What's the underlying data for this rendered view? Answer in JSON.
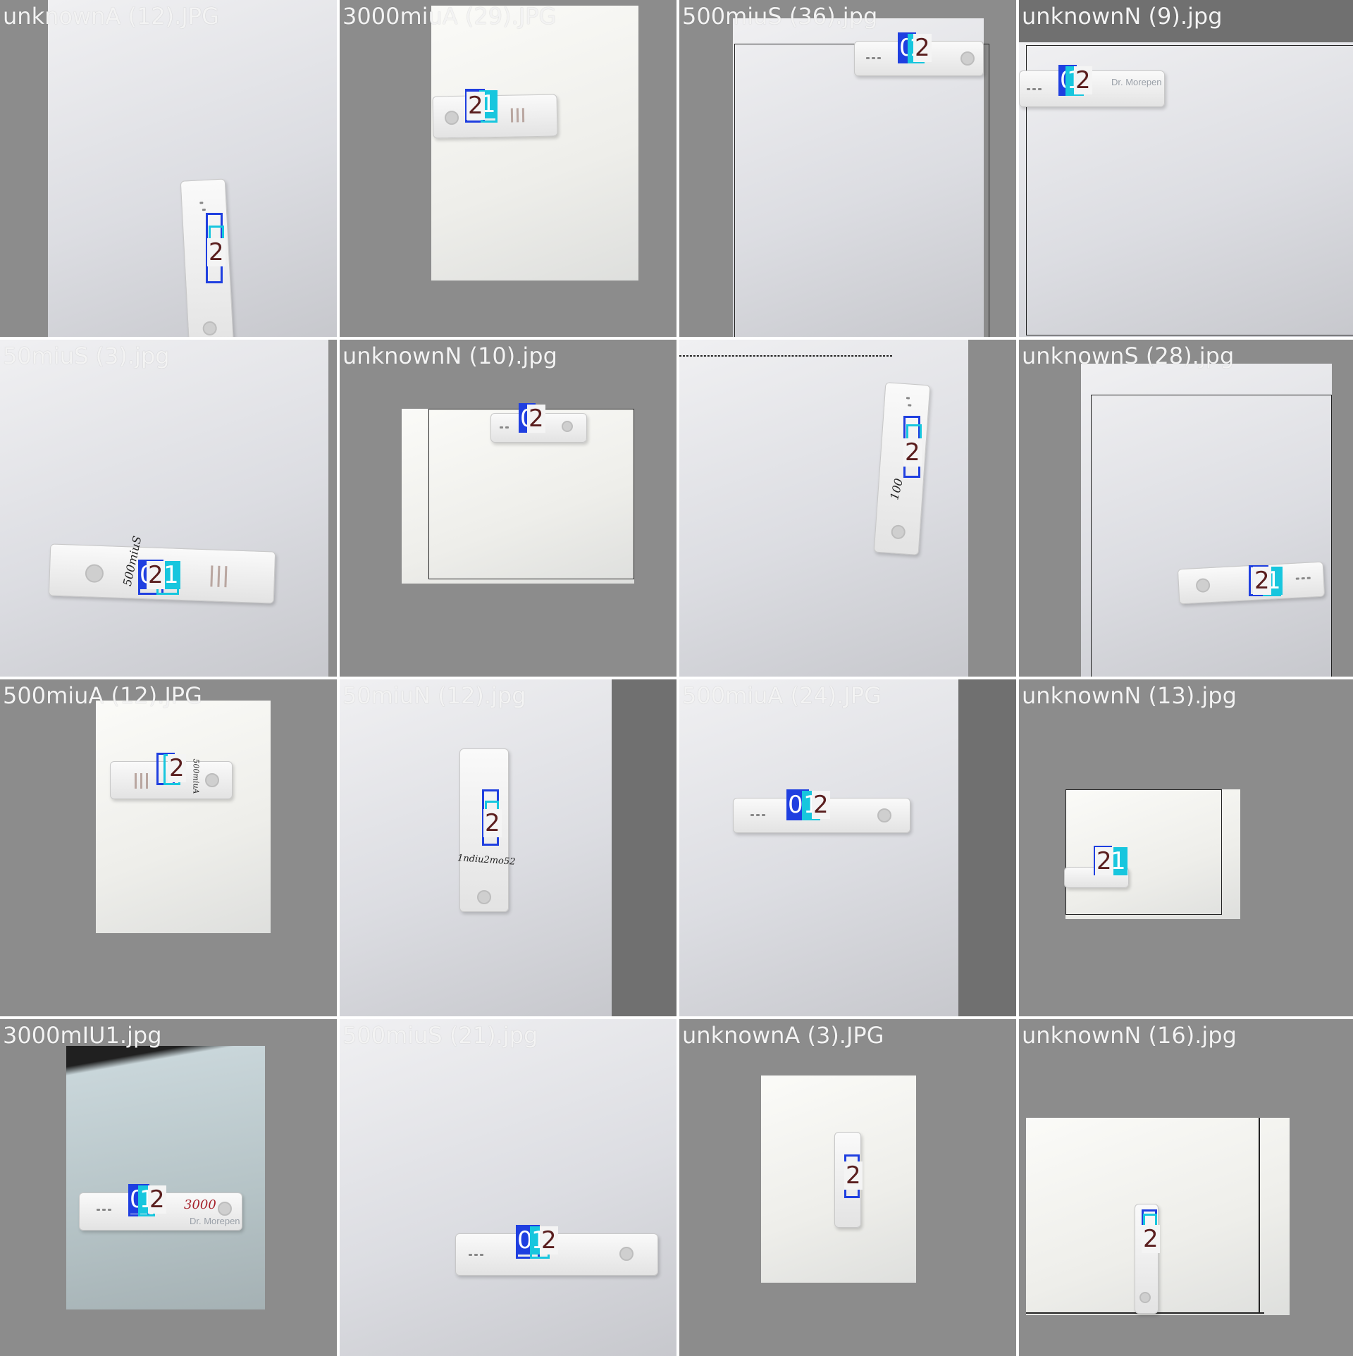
{
  "tiles": [
    {
      "filename": "unknownA (12).JPG",
      "detections": [
        "0",
        "1",
        "2"
      ]
    },
    {
      "filename": "3000miuA (29).JPG",
      "detections": [
        "0",
        "1",
        "2"
      ]
    },
    {
      "filename": "500miuS (36).jpg",
      "detections": [
        "0",
        "1",
        "2"
      ]
    },
    {
      "filename": "unknownN (9).jpg",
      "detections": [
        "0",
        "1",
        "2"
      ]
    },
    {
      "filename": "50miuS (3).jpg",
      "detections": [
        "0",
        "2",
        "1"
      ]
    },
    {
      "filename": "unknownN (10).jpg",
      "detections": [
        "0",
        "2"
      ]
    },
    {
      "filename": "",
      "detections": [
        "0",
        "1",
        "2"
      ]
    },
    {
      "filename": "unknownS (28).jpg",
      "detections": [
        "0",
        "2",
        "1"
      ]
    },
    {
      "filename": "500miuA (12).JPG",
      "detections": [
        "0",
        "1",
        "2"
      ]
    },
    {
      "filename": "50miuN (12).jpg",
      "detections": [
        "0",
        "1",
        "2"
      ]
    },
    {
      "filename": "500miuA (24).JPG",
      "detections": [
        "0",
        "1",
        "2"
      ]
    },
    {
      "filename": "unknownN (13).jpg",
      "detections": [
        "0",
        "2",
        "1"
      ]
    },
    {
      "filename": "3000mIU1.jpg",
      "detections": [
        "0",
        "1",
        "2"
      ]
    },
    {
      "filename": "500miuS (21).jpg",
      "detections": [
        "0",
        "1",
        "2"
      ]
    },
    {
      "filename": "unknownA (3).JPG",
      "detections": [
        "0",
        "1",
        "2"
      ]
    },
    {
      "filename": "unknownN (16).jpg",
      "detections": [
        "0",
        "1",
        "2"
      ]
    }
  ],
  "handwriting": {
    "t4": "500miuS",
    "t9": "500miuA",
    "t10": "1ndiu2mo52",
    "t12": "3000",
    "t6": "100"
  },
  "brand": "Dr. Morepen",
  "colors": {
    "class0": "#1f3fe0",
    "class1": "#17c6de",
    "class2": "#f4f4f4"
  }
}
